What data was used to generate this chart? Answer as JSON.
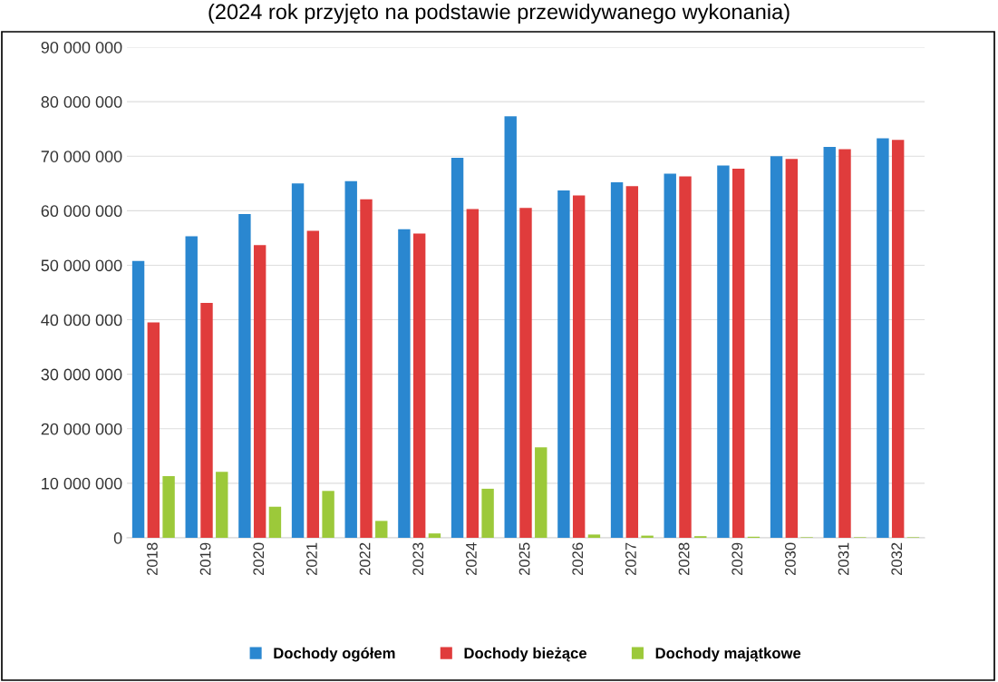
{
  "chart_data": {
    "type": "bar",
    "title": "(2024 rok przyjęto na podstawie przewidywanego wykonania)",
    "categories": [
      "2018",
      "2019",
      "2020",
      "2021",
      "2022",
      "2023",
      "2024",
      "2025",
      "2026",
      "2027",
      "2028",
      "2029",
      "2030",
      "2031",
      "2032"
    ],
    "series": [
      {
        "name": "Dochody ogółem",
        "color": "#2a87d0",
        "values": [
          50800000,
          55300000,
          59400000,
          65000000,
          65400000,
          56600000,
          69700000,
          77300000,
          63700000,
          65200000,
          66800000,
          68300000,
          70000000,
          71700000,
          73300000
        ]
      },
      {
        "name": "Dochody bieżące",
        "color": "#e03c3c",
        "values": [
          39500000,
          43100000,
          53700000,
          56300000,
          62100000,
          55800000,
          60300000,
          60500000,
          62800000,
          64500000,
          66300000,
          67700000,
          69500000,
          71300000,
          73000000
        ]
      },
      {
        "name": "Dochody majątkowe",
        "color": "#9cc93a",
        "values": [
          11300000,
          12100000,
          5700000,
          8600000,
          3100000,
          800000,
          9000000,
          16600000,
          600000,
          400000,
          300000,
          200000,
          100000,
          100000,
          100000
        ]
      }
    ],
    "ylim": [
      0,
      90000000
    ],
    "yticks": [
      {
        "value": 0,
        "label": "0"
      },
      {
        "value": 10000000,
        "label": "10 000 000"
      },
      {
        "value": 20000000,
        "label": "20 000 000"
      },
      {
        "value": 30000000,
        "label": "30 000 000"
      },
      {
        "value": 40000000,
        "label": "40 000 000"
      },
      {
        "value": 50000000,
        "label": "50 000 000"
      },
      {
        "value": 60000000,
        "label": "60 000 000"
      },
      {
        "value": 70000000,
        "label": "70 000 000"
      },
      {
        "value": 80000000,
        "label": "80 000 000"
      },
      {
        "value": 90000000,
        "label": "90 000 000"
      }
    ],
    "grid": "y",
    "legend": "bottom"
  }
}
